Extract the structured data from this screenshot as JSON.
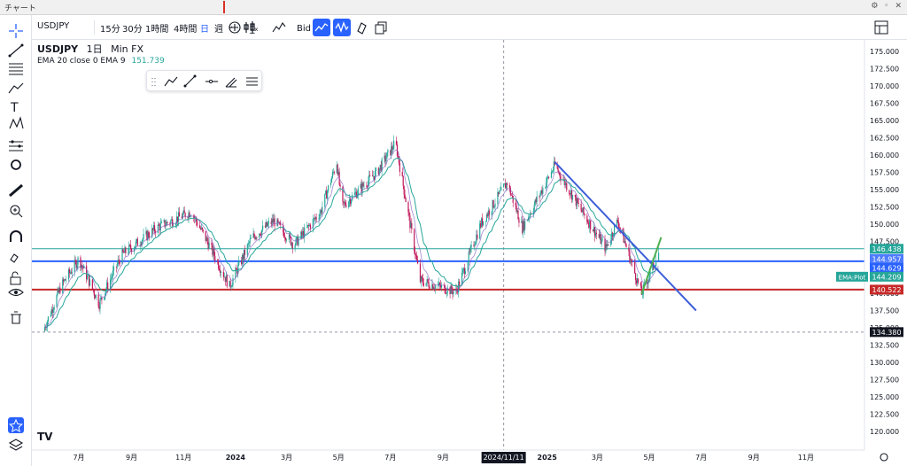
{
  "window": {
    "title": "チャート"
  },
  "toolbar": {
    "symbol": "USDJPY",
    "intervals": [
      "15分",
      "30分",
      "1時間",
      "4時間",
      "日",
      "週"
    ],
    "price_type": "Bid"
  },
  "legend": {
    "symbol": "USDJPY",
    "interval": "1日",
    "source": "Min FX",
    "indicator_label": "EMA 20 close 0 EMA 9",
    "indicator_value": "151.739"
  },
  "colors": {
    "up": "#26a69a",
    "down": "#ef5350",
    "candle": "#c2185b",
    "ema": "#26a69a",
    "trendline": "#3d5fd9",
    "green_line": "#4caf50",
    "red_hline": "#c62828",
    "blue_hline": "#2962ff",
    "teal_hline": "#26a69a",
    "accent": "#2962ff"
  },
  "chart_data": {
    "type": "line",
    "symbol": "USDJPY",
    "interval": "1日",
    "ylim": [
      117.5,
      177.5
    ],
    "y_ticks": [
      "175.000",
      "172.500",
      "170.000",
      "167.500",
      "165.000",
      "162.500",
      "160.000",
      "157.500",
      "155.000",
      "152.500",
      "150.000",
      "147.500",
      "145.000",
      "142.500",
      "140.000",
      "137.500",
      "135.000",
      "132.500",
      "130.000",
      "127.500",
      "125.000",
      "122.500",
      "120.000"
    ],
    "x_ticks": [
      "7月",
      "9月",
      "11月",
      "2024",
      "3月",
      "5月",
      "7月",
      "9月",
      "2025",
      "3月",
      "5月",
      "7月",
      "9月",
      "11月"
    ],
    "crosshair_date": "2024/11/11",
    "price_path": [
      {
        "date": "2023-05-20",
        "price": 134.5
      },
      {
        "date": "2023-06-10",
        "price": 141.0
      },
      {
        "date": "2023-07-01",
        "price": 145.0
      },
      {
        "date": "2023-07-25",
        "price": 138.5
      },
      {
        "date": "2023-08-20",
        "price": 145.5
      },
      {
        "date": "2023-10-01",
        "price": 149.5
      },
      {
        "date": "2023-11-10",
        "price": 151.8
      },
      {
        "date": "2023-12-01",
        "price": 147.0
      },
      {
        "date": "2023-12-25",
        "price": 141.0
      },
      {
        "date": "2024-01-20",
        "price": 148.0
      },
      {
        "date": "2024-02-15",
        "price": 150.5
      },
      {
        "date": "2024-03-10",
        "price": 147.0
      },
      {
        "date": "2024-04-10",
        "price": 151.8
      },
      {
        "date": "2024-04-29",
        "price": 159.0
      },
      {
        "date": "2024-05-05",
        "price": 152.5
      },
      {
        "date": "2024-06-15",
        "price": 157.5
      },
      {
        "date": "2024-07-07",
        "price": 161.8
      },
      {
        "date": "2024-08-05",
        "price": 141.8
      },
      {
        "date": "2024-09-16",
        "price": 140.2
      },
      {
        "date": "2024-10-15",
        "price": 150.0
      },
      {
        "date": "2024-11-15",
        "price": 156.0
      },
      {
        "date": "2024-12-03",
        "price": 149.5
      },
      {
        "date": "2025-01-10",
        "price": 158.5
      },
      {
        "date": "2025-02-10",
        "price": 152.0
      },
      {
        "date": "2025-03-11",
        "price": 146.5
      },
      {
        "date": "2025-03-25",
        "price": 150.5
      },
      {
        "date": "2025-04-22",
        "price": 139.9
      },
      {
        "date": "2025-05-12",
        "price": 145.8
      }
    ],
    "horizontal_lines": [
      {
        "label": "146.438",
        "price": 146.438,
        "color": "#26a69a"
      },
      {
        "label": "144.629",
        "price": 144.629,
        "color": "#2962ff"
      },
      {
        "label": "140.522",
        "price": 140.522,
        "color": "#c62828"
      }
    ],
    "price_labels": [
      {
        "label": "146.438",
        "price": 146.438,
        "color": "#26a69a"
      },
      {
        "label": "144.957",
        "price": 144.957,
        "color": "#4e7bff"
      },
      {
        "label": "144.629",
        "price": 144.629,
        "color": "#2962ff"
      },
      {
        "label": "144.209",
        "price": 144.209,
        "color": "#26a69a",
        "tag": "EMA:Plot"
      },
      {
        "label": "140.522",
        "price": 140.522,
        "color": "#c62828"
      },
      {
        "label": "134.380",
        "price": 134.38,
        "color": "#131722"
      }
    ],
    "dashed_level": 134.38,
    "trendlines": [
      {
        "name": "downtrend",
        "color": "#3d5fd9",
        "from": {
          "date": "2025-01-10",
          "price": 159.0
        },
        "to": {
          "date": "2025-06-25",
          "price": 137.5
        }
      },
      {
        "name": "rebound",
        "color": "#4caf50",
        "from": {
          "date": "2025-04-22",
          "price": 139.9
        },
        "to": {
          "date": "2025-05-15",
          "price": 148.1
        }
      }
    ]
  }
}
